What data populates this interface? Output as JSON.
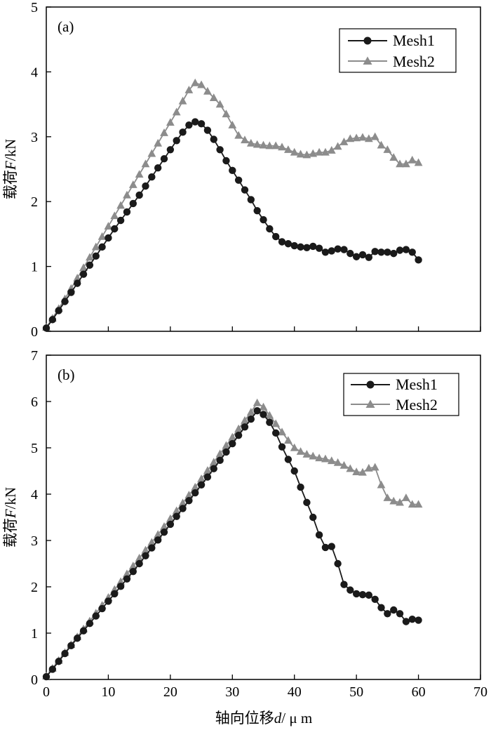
{
  "figure": {
    "xlabel_main": "轴向位移",
    "xlabel_var": "d",
    "xlabel_unit": "/ μ m"
  },
  "chart_data": [
    {
      "type": "line",
      "panel_label": "(a)",
      "ylabel_main": "载荷",
      "ylabel_var": "F",
      "ylabel_unit": "/kN",
      "xlim": [
        0,
        70
      ],
      "ylim": [
        0,
        5
      ],
      "xticks": [
        "0",
        "10",
        "20",
        "30",
        "40",
        "50",
        "60",
        "70"
      ],
      "yticks": [
        "0",
        "1",
        "2",
        "3",
        "4",
        "5"
      ],
      "legend_position": "top-right",
      "series": [
        {
          "name": "Mesh1",
          "marker": "circle",
          "color": "#1a1a1a",
          "x": [
            0,
            1,
            2,
            3,
            4,
            5,
            6,
            7,
            8,
            9,
            10,
            11,
            12,
            13,
            14,
            15,
            16,
            17,
            18,
            19,
            20,
            21,
            22,
            23,
            24,
            25,
            26,
            27,
            28,
            29,
            30,
            31,
            32,
            33,
            34,
            35,
            36,
            37,
            38,
            39,
            40,
            41,
            42,
            43,
            44,
            45,
            46,
            47,
            48,
            49,
            50,
            51,
            52,
            53,
            54,
            55,
            56,
            57,
            58,
            59,
            60
          ],
          "y": [
            0.05,
            0.18,
            0.32,
            0.46,
            0.6,
            0.74,
            0.88,
            1.02,
            1.16,
            1.3,
            1.44,
            1.58,
            1.71,
            1.84,
            1.97,
            2.1,
            2.24,
            2.38,
            2.52,
            2.66,
            2.8,
            2.94,
            3.07,
            3.18,
            3.23,
            3.2,
            3.1,
            2.96,
            2.8,
            2.63,
            2.48,
            2.33,
            2.18,
            2.03,
            1.86,
            1.72,
            1.58,
            1.46,
            1.38,
            1.35,
            1.32,
            1.3,
            1.29,
            1.31,
            1.28,
            1.22,
            1.24,
            1.27,
            1.26,
            1.2,
            1.15,
            1.18,
            1.14,
            1.23,
            1.22,
            1.22,
            1.2,
            1.25,
            1.26,
            1.22,
            1.1
          ]
        },
        {
          "name": "Mesh2",
          "marker": "triangle",
          "color": "#8c8c8c",
          "x": [
            0,
            1,
            2,
            3,
            4,
            5,
            6,
            7,
            8,
            9,
            10,
            11,
            12,
            13,
            14,
            15,
            16,
            17,
            18,
            19,
            20,
            21,
            22,
            23,
            24,
            25,
            26,
            27,
            28,
            29,
            30,
            31,
            32,
            33,
            34,
            35,
            36,
            37,
            38,
            39,
            40,
            41,
            42,
            43,
            44,
            45,
            46,
            47,
            48,
            49,
            50,
            51,
            52,
            53,
            54,
            55,
            56,
            57,
            58,
            59,
            60
          ],
          "y": [
            0.06,
            0.2,
            0.35,
            0.5,
            0.66,
            0.82,
            0.98,
            1.14,
            1.3,
            1.46,
            1.62,
            1.78,
            1.94,
            2.1,
            2.26,
            2.42,
            2.58,
            2.74,
            2.9,
            3.06,
            3.22,
            3.38,
            3.55,
            3.72,
            3.83,
            3.8,
            3.7,
            3.6,
            3.5,
            3.35,
            3.18,
            3.02,
            2.95,
            2.9,
            2.88,
            2.87,
            2.86,
            2.86,
            2.84,
            2.8,
            2.76,
            2.73,
            2.72,
            2.74,
            2.76,
            2.76,
            2.79,
            2.85,
            2.92,
            2.97,
            2.98,
            2.99,
            2.97,
            3.0,
            2.87,
            2.8,
            2.68,
            2.58,
            2.58,
            2.64,
            2.6
          ]
        }
      ]
    },
    {
      "type": "line",
      "panel_label": "(b)",
      "ylabel_main": "载荷",
      "ylabel_var": "F",
      "ylabel_unit": "/kN",
      "xlim": [
        0,
        70
      ],
      "ylim": [
        0,
        7
      ],
      "xticks": [
        "0",
        "10",
        "20",
        "30",
        "40",
        "50",
        "60",
        "70"
      ],
      "yticks": [
        "0",
        "1",
        "2",
        "3",
        "4",
        "5",
        "6",
        "7"
      ],
      "legend_position": "top-right",
      "series": [
        {
          "name": "Mesh1",
          "marker": "circle",
          "color": "#1a1a1a",
          "x": [
            0,
            1,
            2,
            3,
            4,
            5,
            6,
            7,
            8,
            9,
            10,
            11,
            12,
            13,
            14,
            15,
            16,
            17,
            18,
            19,
            20,
            21,
            22,
            23,
            24,
            25,
            26,
            27,
            28,
            29,
            30,
            31,
            32,
            33,
            34,
            35,
            36,
            37,
            38,
            39,
            40,
            41,
            42,
            43,
            44,
            45,
            46,
            47,
            48,
            49,
            50,
            51,
            52,
            53,
            54,
            55,
            56,
            57,
            58,
            59,
            60
          ],
          "y": [
            0.06,
            0.22,
            0.39,
            0.56,
            0.73,
            0.89,
            1.05,
            1.21,
            1.37,
            1.53,
            1.69,
            1.85,
            2.01,
            2.17,
            2.33,
            2.5,
            2.67,
            2.84,
            3.01,
            3.18,
            3.35,
            3.52,
            3.69,
            3.86,
            4.03,
            4.2,
            4.37,
            4.55,
            4.73,
            4.91,
            5.09,
            5.27,
            5.45,
            5.62,
            5.8,
            5.72,
            5.55,
            5.32,
            5.02,
            4.75,
            4.5,
            4.15,
            3.82,
            3.5,
            3.12,
            2.85,
            2.87,
            2.5,
            2.05,
            1.93,
            1.85,
            1.83,
            1.82,
            1.73,
            1.55,
            1.42,
            1.5,
            1.42,
            1.25,
            1.3,
            1.28
          ]
        },
        {
          "name": "Mesh2",
          "marker": "triangle",
          "color": "#8c8c8c",
          "x": [
            0,
            1,
            2,
            3,
            4,
            5,
            6,
            7,
            8,
            9,
            10,
            11,
            12,
            13,
            14,
            15,
            16,
            17,
            18,
            19,
            20,
            21,
            22,
            23,
            24,
            25,
            26,
            27,
            28,
            29,
            30,
            31,
            32,
            33,
            34,
            35,
            36,
            37,
            38,
            39,
            40,
            41,
            42,
            43,
            44,
            45,
            46,
            47,
            48,
            49,
            50,
            51,
            52,
            53,
            54,
            55,
            56,
            57,
            58,
            59,
            60
          ],
          "y": [
            0.07,
            0.24,
            0.41,
            0.58,
            0.75,
            0.92,
            1.09,
            1.26,
            1.43,
            1.6,
            1.77,
            1.94,
            2.11,
            2.28,
            2.45,
            2.62,
            2.79,
            2.96,
            3.13,
            3.3,
            3.47,
            3.64,
            3.81,
            3.98,
            4.15,
            4.33,
            4.51,
            4.69,
            4.87,
            5.05,
            5.23,
            5.41,
            5.59,
            5.77,
            5.97,
            5.88,
            5.7,
            5.52,
            5.34,
            5.16,
            5.0,
            4.92,
            4.86,
            4.82,
            4.78,
            4.76,
            4.72,
            4.68,
            4.62,
            4.55,
            4.48,
            4.47,
            4.56,
            4.58,
            4.2,
            3.92,
            3.85,
            3.82,
            3.92,
            3.78,
            3.78
          ]
        }
      ]
    }
  ]
}
